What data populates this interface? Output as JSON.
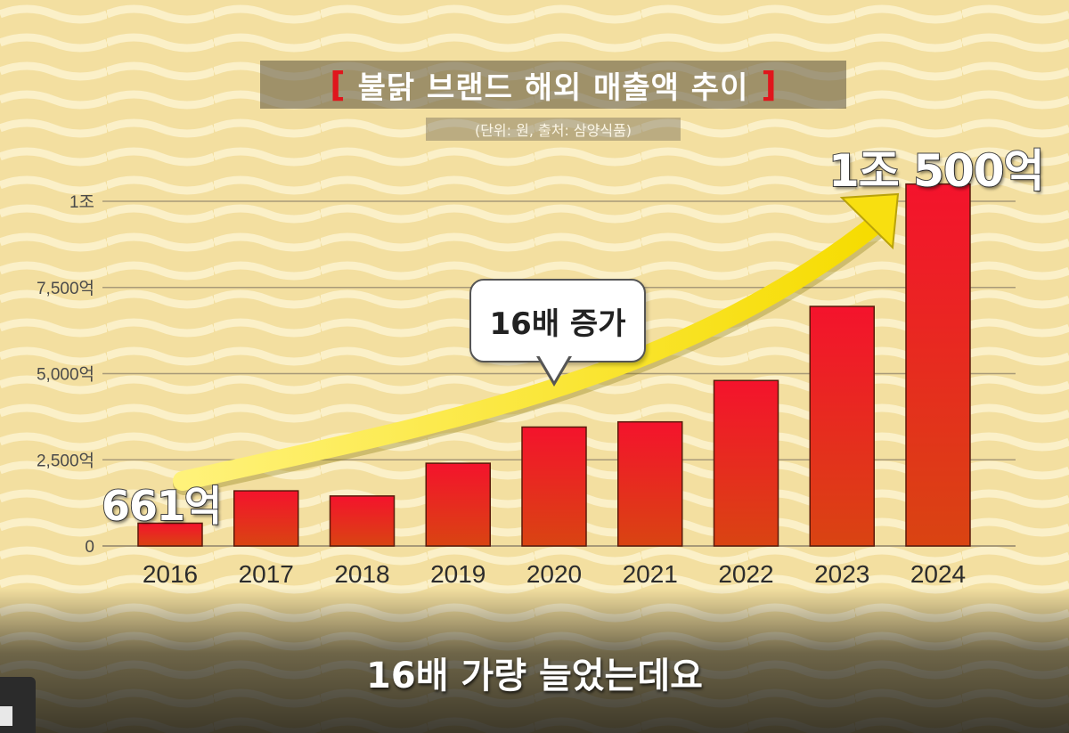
{
  "title": {
    "bracket_left": "[",
    "text": "불닭 브랜드 해외 매출액 추이",
    "bracket_right": "]"
  },
  "subtitle": "(단위: 원, 출처: 삼양식품)",
  "callouts": {
    "start_value": "661억",
    "end_value": "1조 500억",
    "bubble": "16배 증가"
  },
  "caption": "16배 가량 늘었는데요",
  "chart_data": {
    "type": "bar",
    "title": "불닭 브랜드 해외 매출액 추이",
    "subtitle": "(단위: 원, 출처: 삼양식품)",
    "unit": "억 원",
    "categories": [
      "2016",
      "2017",
      "2018",
      "2019",
      "2020",
      "2021",
      "2022",
      "2023",
      "2024"
    ],
    "values": [
      661,
      1600,
      1450,
      2400,
      3450,
      3600,
      4800,
      6950,
      10500
    ],
    "ylim": [
      0,
      10000
    ],
    "yticks": [
      {
        "value": 0,
        "label": "0"
      },
      {
        "value": 2500,
        "label": "2,500억"
      },
      {
        "value": 5000,
        "label": "5,000억"
      },
      {
        "value": 7500,
        "label": "7,500억"
      },
      {
        "value": 10000,
        "label": "1조"
      }
    ],
    "grid": true,
    "xlabel": "",
    "ylabel": "",
    "annotations": [
      "661억",
      "1조 500억",
      "16배 증가"
    ]
  },
  "colors": {
    "bar_top": "#f4132c",
    "bar_bottom": "#d94412",
    "arrow": "#fbe21a",
    "grid": "#a89a78",
    "tick_text": "#4a4a4a"
  }
}
